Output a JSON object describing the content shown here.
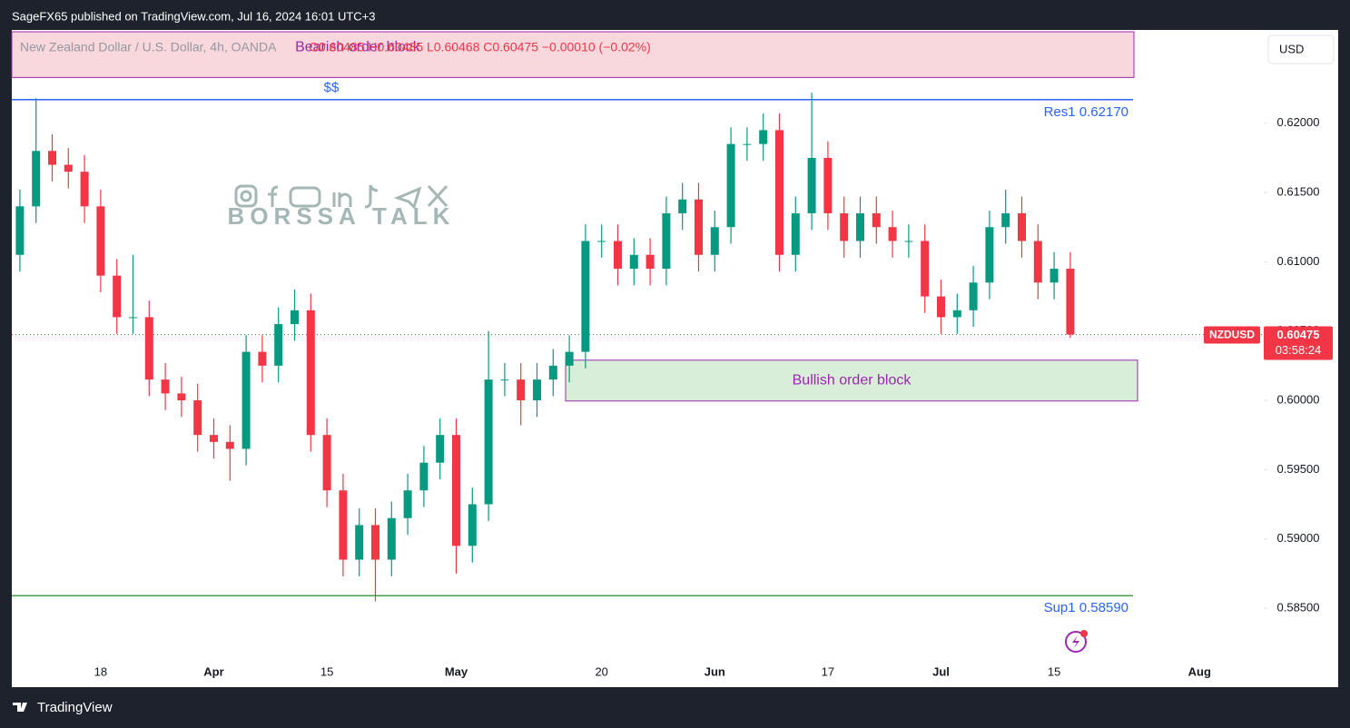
{
  "header": {
    "published": "SageFX65 published on TradingView.com, Jul 16, 2024 16:01 UTC+3"
  },
  "footer": {
    "brand": "TradingView"
  },
  "watermark": "BORSSA TALK",
  "currency_button": "USD",
  "chart_data": {
    "type": "candlestick",
    "legend": {
      "symbol": "New Zealand Dollar / U.S. Dollar, 4h, OANDA",
      "values_text": "O0.60485 H0.60485 L0.60468 C0.60475 −0.00010 (−0.02%)"
    },
    "categories": [
      null,
      null,
      null,
      null,
      null,
      "18",
      null,
      null,
      null,
      null,
      null,
      null,
      "Apr",
      null,
      null,
      null,
      null,
      null,
      null,
      "15",
      null,
      null,
      null,
      null,
      null,
      null,
      null,
      "May",
      null,
      null,
      null,
      null,
      null,
      null,
      null,
      null,
      "20",
      null,
      null,
      null,
      null,
      null,
      null,
      "Jun",
      null,
      null,
      null,
      null,
      null,
      null,
      "17",
      null,
      null,
      null,
      null,
      null,
      null,
      "Jul",
      null,
      null,
      null,
      null,
      null,
      null,
      "15",
      null,
      null,
      null,
      null,
      null,
      null,
      null,
      null,
      "Aug",
      null,
      null,
      null,
      null,
      null,
      null,
      null,
      null
    ],
    "open": [
      0.6105,
      0.614,
      0.618,
      0.617,
      0.6165,
      0.614,
      0.609,
      0.606,
      0.606,
      0.6015,
      0.6005,
      0.6,
      0.5975,
      0.597,
      0.5965,
      0.6035,
      0.6025,
      0.6055,
      0.6065,
      0.5975,
      0.5935,
      0.5885,
      0.591,
      0.5885,
      0.5915,
      0.5935,
      0.5955,
      0.5975,
      0.5895,
      0.5925,
      0.6015,
      0.6015,
      0.6,
      0.6015,
      0.6025,
      0.6035,
      0.6115,
      0.6115,
      0.6095,
      0.6105,
      0.6095,
      0.6135,
      0.6145,
      0.6105,
      0.6125,
      0.6185,
      0.6185,
      0.6195,
      0.6105,
      0.6135,
      0.6175,
      0.6135,
      0.6115,
      0.6135,
      0.6125,
      0.6115,
      0.6115,
      0.6075,
      0.606,
      0.6065,
      0.6085,
      0.6125,
      0.6135,
      0.6115,
      0.6085,
      0.6095,
      null,
      null,
      null,
      null,
      null,
      null,
      null,
      null,
      null,
      null,
      null,
      null,
      null,
      null,
      null,
      null
    ],
    "high": [
      0.6152,
      0.6218,
      0.6192,
      0.6182,
      0.6177,
      0.6152,
      0.6102,
      0.6105,
      0.6072,
      0.6027,
      0.6017,
      0.6012,
      0.5987,
      0.5982,
      0.6047,
      0.6047,
      0.6067,
      0.608,
      0.6077,
      0.5987,
      0.5947,
      0.5922,
      0.5922,
      0.5927,
      0.5947,
      0.5967,
      0.5987,
      0.5987,
      0.5937,
      0.605,
      0.6027,
      0.6027,
      0.6027,
      0.6037,
      0.6047,
      0.6127,
      0.6127,
      0.6127,
      0.6117,
      0.6117,
      0.6147,
      0.6157,
      0.6157,
      0.6137,
      0.6197,
      0.6197,
      0.6207,
      0.6207,
      0.6147,
      0.6222,
      0.6187,
      0.6147,
      0.6147,
      0.6147,
      0.6137,
      0.6127,
      0.6127,
      0.6087,
      0.6077,
      0.6097,
      0.6137,
      0.6152,
      0.6147,
      0.6127,
      0.6107,
      0.6107,
      null,
      null,
      null,
      null,
      null,
      null,
      null,
      null,
      null,
      null,
      null,
      null,
      null,
      null,
      null,
      null
    ],
    "low": [
      0.6093,
      0.6128,
      0.6158,
      0.6153,
      0.6128,
      0.6078,
      0.6048,
      0.6048,
      0.6003,
      0.5993,
      0.5988,
      0.5963,
      0.5958,
      0.5942,
      0.5953,
      0.6013,
      0.6013,
      0.6043,
      0.5963,
      0.5923,
      0.5873,
      0.5873,
      0.5855,
      0.5873,
      0.5903,
      0.5923,
      0.5943,
      0.5875,
      0.5883,
      0.5913,
      0.6003,
      0.5982,
      0.5988,
      0.6003,
      0.6013,
      0.6023,
      0.6103,
      0.6083,
      0.6083,
      0.6083,
      0.6083,
      0.6123,
      0.6093,
      0.6093,
      0.6113,
      0.6173,
      0.6173,
      0.6093,
      0.6093,
      0.6123,
      0.6123,
      0.6103,
      0.6103,
      0.6113,
      0.6103,
      0.6103,
      0.6063,
      0.6048,
      0.6048,
      0.6053,
      0.6073,
      0.6113,
      0.6103,
      0.6073,
      0.6073,
      0.6045,
      null,
      null,
      null,
      null,
      null,
      null,
      null,
      null,
      null,
      null,
      null,
      null,
      null,
      null,
      null,
      null
    ],
    "close": [
      0.614,
      0.618,
      0.617,
      0.6165,
      0.614,
      0.609,
      0.606,
      0.606,
      0.6015,
      0.6005,
      0.6,
      0.5975,
      0.597,
      0.5965,
      0.6035,
      0.6025,
      0.6055,
      0.6065,
      0.5975,
      0.5935,
      0.5885,
      0.591,
      0.5885,
      0.5915,
      0.5935,
      0.5955,
      0.5975,
      0.5895,
      0.5925,
      0.6015,
      0.6015,
      0.6,
      0.6015,
      0.6025,
      0.6035,
      0.6115,
      0.6115,
      0.6095,
      0.6105,
      0.6095,
      0.6135,
      0.6145,
      0.6105,
      0.6125,
      0.6185,
      0.6185,
      0.6195,
      0.6105,
      0.6135,
      0.6175,
      0.6135,
      0.6115,
      0.6135,
      0.6125,
      0.6115,
      0.6115,
      0.6075,
      0.606,
      0.6065,
      0.6085,
      0.6125,
      0.6135,
      0.6115,
      0.6085,
      0.6095,
      0.60475,
      null,
      null,
      null,
      null,
      null,
      null,
      null,
      null,
      null,
      null,
      null,
      null,
      null,
      null,
      null,
      null
    ],
    "up_color": "#089981",
    "down_color": "#f23645",
    "ylim": [
      0.5793,
      0.6266
    ],
    "yticks": [
      {
        "value": 0.585,
        "label": "0.58500"
      },
      {
        "value": 0.59,
        "label": "0.59000"
      },
      {
        "value": 0.595,
        "label": "0.59500"
      },
      {
        "value": 0.6,
        "label": "0.60000"
      },
      {
        "value": 0.605,
        "label": "0.60500"
      },
      {
        "value": 0.61,
        "label": "0.61000"
      },
      {
        "value": 0.615,
        "label": "0.61500"
      },
      {
        "value": 0.62,
        "label": "0.62000"
      }
    ],
    "levels": [
      {
        "label": "Res1 0.62170",
        "value": 0.6217,
        "color": "#2962ff",
        "note": "$$"
      },
      {
        "label": "Sup1 0.58590",
        "value": 0.5859,
        "color": "#43a047"
      }
    ],
    "zones": [
      {
        "label": "Bearish order block",
        "top": 0.6266,
        "bottom": 0.6233,
        "color": "#f8d7dd"
      },
      {
        "label": "Bullish order block",
        "top": 0.6029,
        "bottom": 0.59995,
        "color": "#d9eed9"
      }
    ],
    "last_price": {
      "symbol": "NZDUSD",
      "value": 0.60475,
      "countdown": "03:58:24",
      "color": "#f23645"
    }
  }
}
